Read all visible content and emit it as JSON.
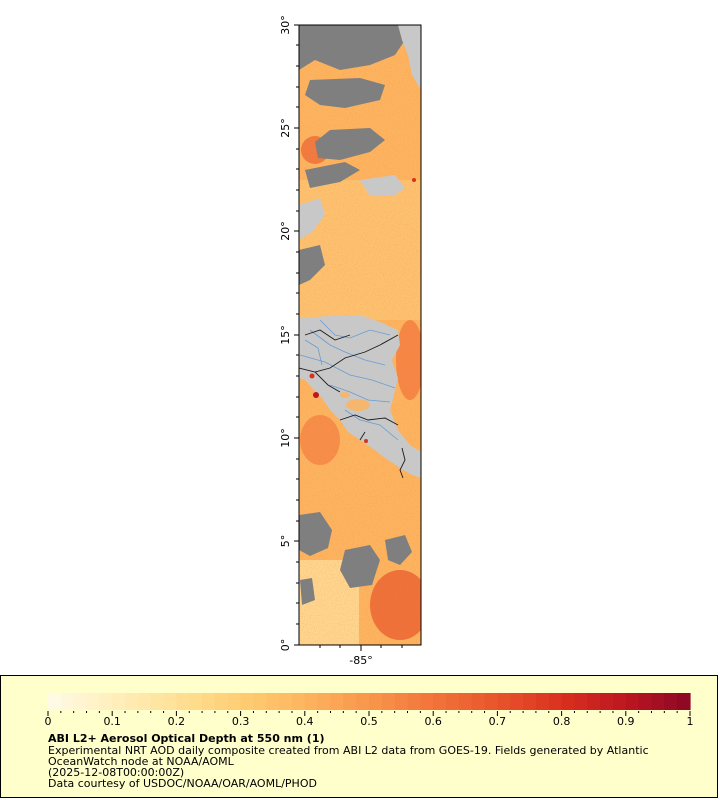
{
  "map": {
    "y_tick_labels": [
      "0°",
      "5°",
      "10°",
      "15°",
      "20°",
      "25°",
      "30°"
    ],
    "x_tick_labels": [
      "-85°"
    ],
    "colors": {
      "ocean_low": "#ffe9a8",
      "ocean_mid": "#fdb45e",
      "ocean_high": "#e8552b",
      "cloud_nodata": "#7f7f7f",
      "land": "#c8c8c8",
      "river": "#6b9bd1",
      "border": "#1a1a1a",
      "frame": "#000000"
    }
  },
  "legend": {
    "tick_labels": [
      "0",
      "0.1",
      "0.2",
      "0.3",
      "0.4",
      "0.5",
      "0.6",
      "0.7",
      "0.8",
      "0.9",
      "1"
    ],
    "title": "ABI L2+ Aerosol Optical Depth at 550 nm (1)",
    "line1": "Experimental NRT AOD daily composite created from ABI L2 data from GOES-19. Fields generated by Atlantic",
    "line2": "OceanWatch node at NOAA/AOML",
    "line3": "(2025-12-08T00:00:00Z)",
    "line4": "Data courtesy of USDOC/NOAA/OAR/AOML/PHOD",
    "colorscale": [
      "#fffbe8",
      "#ffefbd",
      "#ffe097",
      "#ffce73",
      "#fdb45e",
      "#f9964c",
      "#f2743a",
      "#e8552b",
      "#d9301f",
      "#bd1620",
      "#8a0826"
    ],
    "background": "#ffffcc"
  }
}
